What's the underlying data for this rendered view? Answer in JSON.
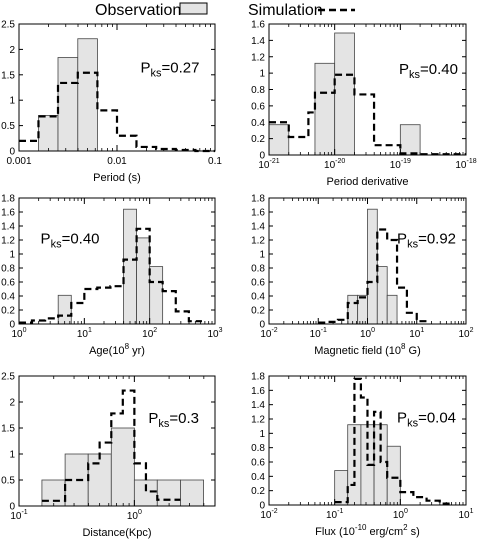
{
  "legend": {
    "observation_label": "Observation",
    "simulation_label": "Simulation",
    "observation_fill": "#e4e4e4",
    "simulation_style": "dashed"
  },
  "chart_data": [
    {
      "type": "bar",
      "xlabel": "Period (s)",
      "xscale": "log",
      "xlim": [
        0.001,
        0.1
      ],
      "ylim": [
        0,
        2.5
      ],
      "x_ticks": [
        0.001,
        0.01,
        0.1
      ],
      "x_tick_labels": [
        "0.001",
        "0.01",
        "0.1"
      ],
      "y_ticks": [
        0,
        0.5,
        1,
        1.5,
        2,
        2.5
      ],
      "y_tick_labels": [
        "0",
        "0.5",
        "1",
        "1.5",
        "2",
        "2.5"
      ],
      "annotation": {
        "prefix": "P",
        "sub": "ks",
        "value": "=0.27"
      },
      "observation": {
        "bin_edges": [
          0.00158,
          0.0025,
          0.00398,
          0.00631
        ],
        "values": [
          0.7,
          1.84,
          2.21,
          1.12
        ]
      },
      "simulation": {
        "bin_edges": [
          0.001,
          0.00158,
          0.0025,
          0.00398,
          0.00631,
          0.01,
          0.0158,
          0.0251,
          0.0398,
          0.0631,
          0.1
        ],
        "values": [
          0.2,
          0.68,
          1.34,
          1.54,
          0.8,
          0.3,
          0.08,
          0.04,
          0.02,
          0
        ]
      }
    },
    {
      "type": "bar",
      "xlabel": "Period derivative",
      "xscale": "log",
      "xlim": [
        1e-21,
        1e-18
      ],
      "ylim": [
        0,
        1.6
      ],
      "x_ticks": [
        1e-21,
        1e-20,
        1e-19,
        1e-18
      ],
      "x_tick_labels": [
        {
          "base": "10",
          "exp": "-21"
        },
        {
          "base": "10",
          "exp": "-20"
        },
        {
          "base": "10",
          "exp": "-19"
        },
        {
          "base": "10",
          "exp": "-18"
        }
      ],
      "y_ticks": [
        0,
        0.2,
        0.4,
        0.6,
        0.8,
        1,
        1.2,
        1.4,
        1.6
      ],
      "y_tick_labels": [
        "0",
        "0.2",
        "0.4",
        "0.6",
        "0.8",
        "1",
        "1.2",
        "1.4",
        "1.6"
      ],
      "annotation": {
        "prefix": "P",
        "sub": "ks",
        "value": "=0.40"
      },
      "observation": {
        "bin_edges": [
          1e-21,
          2e-21,
          3.98e-21,
          5.01e-21,
          1e-20,
          2e-20,
          5.01e-20,
          1e-19,
          2e-19
        ],
        "values": [
          0.37,
          0,
          0,
          1.12,
          1.49,
          0,
          0,
          0.37
        ]
      },
      "simulation": {
        "bin_edges": [
          1e-21,
          2e-21,
          3.98e-21,
          5.01e-21,
          1e-20,
          2e-20,
          3.98e-20,
          1e-19,
          2e-19,
          3.98e-19,
          1e-18
        ],
        "values": [
          0.4,
          0.22,
          0.52,
          0.76,
          0.98,
          0.74,
          0.12,
          0.02,
          0.01,
          0.01
        ]
      }
    },
    {
      "type": "bar",
      "xlabel": "Age(10^8 yr)",
      "xlabel_parts": {
        "pre": "Age(10",
        "sup": "8",
        "post": " yr)"
      },
      "xscale": "log",
      "xlim": [
        1,
        1000
      ],
      "ylim": [
        0,
        1.8
      ],
      "x_ticks": [
        1,
        10,
        100,
        1000
      ],
      "x_tick_labels": [
        {
          "base": "10",
          "exp": "0"
        },
        {
          "base": "10",
          "exp": "1"
        },
        {
          "base": "10",
          "exp": "2"
        },
        {
          "base": "10",
          "exp": "3"
        }
      ],
      "y_ticks": [
        0,
        0.2,
        0.4,
        0.6,
        0.8,
        1,
        1.2,
        1.4,
        1.6,
        1.8
      ],
      "y_tick_labels": [
        "0",
        "0.2",
        "0.4",
        "0.6",
        "0.8",
        "1",
        "1.2",
        "1.4",
        "1.6",
        "1.8"
      ],
      "annotation": {
        "prefix": "P",
        "sub": "ks",
        "value": "=0.40"
      },
      "observation": {
        "bin_edges": [
          3.98,
          6.31,
          10,
          15.8,
          25.1,
          39.8,
          63.1,
          100,
          158
        ],
        "values": [
          0.41,
          0,
          0,
          0,
          0,
          1.64,
          1.23,
          0.82
        ]
      },
      "simulation": {
        "bin_edges": [
          1,
          1.58,
          2.51,
          3.98,
          6.31,
          10,
          15.8,
          25.1,
          39.8,
          63.1,
          100,
          158,
          251,
          398,
          631
        ],
        "values": [
          0.02,
          0.05,
          0.08,
          0.12,
          0.3,
          0.5,
          0.52,
          0.54,
          0.92,
          1.36,
          0.6,
          0.47,
          0.18,
          0.04
        ]
      }
    },
    {
      "type": "bar",
      "xlabel": "Magnetic field (10^8 G)",
      "xlabel_parts": {
        "pre": "Magnetic field (10",
        "sup": "8",
        "post": " G)"
      },
      "xscale": "log",
      "xlim": [
        0.01,
        100
      ],
      "ylim": [
        0,
        1.8
      ],
      "x_ticks": [
        0.01,
        0.1,
        1,
        10,
        100
      ],
      "x_tick_labels": [
        {
          "base": "10",
          "exp": "-2"
        },
        {
          "base": "10",
          "exp": "-1"
        },
        {
          "base": "10",
          "exp": "0"
        },
        {
          "base": "10",
          "exp": "1"
        },
        {
          "base": "10",
          "exp": "2"
        }
      ],
      "y_ticks": [
        0,
        0.2,
        0.4,
        0.6,
        0.8,
        1,
        1.2,
        1.4,
        1.6,
        1.8
      ],
      "y_tick_labels": [
        "0",
        "0.2",
        "0.4",
        "0.6",
        "0.8",
        "1",
        "1.2",
        "1.4",
        "1.6",
        "1.8"
      ],
      "annotation": {
        "prefix": "P",
        "sub": "ks",
        "value": "=0.92"
      },
      "observation": {
        "bin_edges": [
          0.398,
          0.631,
          1,
          1.58,
          2.51,
          3.98,
          6.31
        ],
        "values": [
          0.41,
          0.41,
          1.64,
          0.82,
          0.41,
          0
        ]
      },
      "simulation": {
        "bin_edges": [
          0.1,
          0.158,
          0.251,
          0.398,
          0.631,
          1,
          1.58,
          2.51,
          3.98,
          6.31,
          10,
          15.8
        ],
        "values": [
          0.02,
          0.03,
          0.06,
          0.3,
          0.38,
          0.6,
          1.35,
          1.2,
          0.52,
          0.16,
          0.04
        ]
      }
    },
    {
      "type": "bar",
      "xlabel": "Distance(Kpc)",
      "xscale": "log",
      "xlim": [
        0.1,
        5
      ],
      "ylim": [
        0,
        2.5
      ],
      "x_ticks": [
        0.1,
        1
      ],
      "x_tick_labels": [
        {
          "base": "10",
          "exp": "-1"
        },
        {
          "base": "10",
          "exp": "0"
        }
      ],
      "y_ticks": [
        0,
        0.5,
        1,
        1.5,
        2,
        2.5
      ],
      "y_tick_labels": [
        "0",
        "0.5",
        "1",
        "1.5",
        "2",
        "2.5"
      ],
      "annotation": {
        "prefix": "P",
        "sub": "ks",
        "value": "=0.3"
      },
      "observation": {
        "bin_edges": [
          0.158,
          0.251,
          0.398,
          0.631,
          1,
          1.58,
          2.51,
          3.98
        ],
        "values": [
          0.5,
          1.0,
          1.0,
          1.5,
          0.5,
          0.5,
          0.5
        ]
      },
      "simulation": {
        "bin_edges": [
          0.158,
          0.251,
          0.398,
          0.5,
          0.631,
          0.794,
          1,
          1.26,
          1.58,
          2.51
        ],
        "values": [
          0.1,
          0.5,
          0.82,
          1.22,
          1.78,
          2.22,
          0.82,
          0.28,
          0.12
        ]
      }
    },
    {
      "type": "bar",
      "xlabel": "Flux (10^-10 erg/cm^2 s)",
      "xlabel_parts": {
        "pre": "Flux (10",
        "sup": "-10",
        "mid": " erg/cm",
        "sup2": "2",
        "post": " s)"
      },
      "xscale": "log",
      "xlim": [
        0.01,
        10
      ],
      "ylim": [
        0,
        1.8
      ],
      "x_ticks": [
        0.01,
        0.1,
        1,
        10
      ],
      "x_tick_labels": [
        {
          "base": "10",
          "exp": "-2"
        },
        {
          "base": "10",
          "exp": "-1"
        },
        {
          "base": "10",
          "exp": "0"
        },
        {
          "base": "10",
          "exp": "1"
        }
      ],
      "y_ticks": [
        0,
        0.2,
        0.4,
        0.6,
        0.8,
        1,
        1.2,
        1.4,
        1.6,
        1.8
      ],
      "y_tick_labels": [
        "0",
        "0.2",
        "0.4",
        "0.6",
        "0.8",
        "1",
        "1.2",
        "1.4",
        "1.6",
        "1.8"
      ],
      "annotation": {
        "prefix": "P",
        "sub": "ks",
        "value": "=0.04"
      },
      "observation": {
        "bin_edges": [
          0.1,
          0.158,
          0.251,
          0.398,
          0.631,
          1
        ],
        "values": [
          0.48,
          1.12,
          1.12,
          1.12,
          0.82
        ]
      },
      "simulation": {
        "bin_edges": [
          0.1,
          0.158,
          0.2,
          0.251,
          0.316,
          0.398,
          0.501,
          0.631,
          1,
          1.58,
          2.51,
          3.98,
          6.31
        ],
        "values": [
          0.04,
          0.28,
          1.76,
          1.5,
          0.56,
          1.3,
          0.6,
          0.38,
          0.18,
          0.11,
          0.06,
          0.02
        ]
      }
    }
  ]
}
